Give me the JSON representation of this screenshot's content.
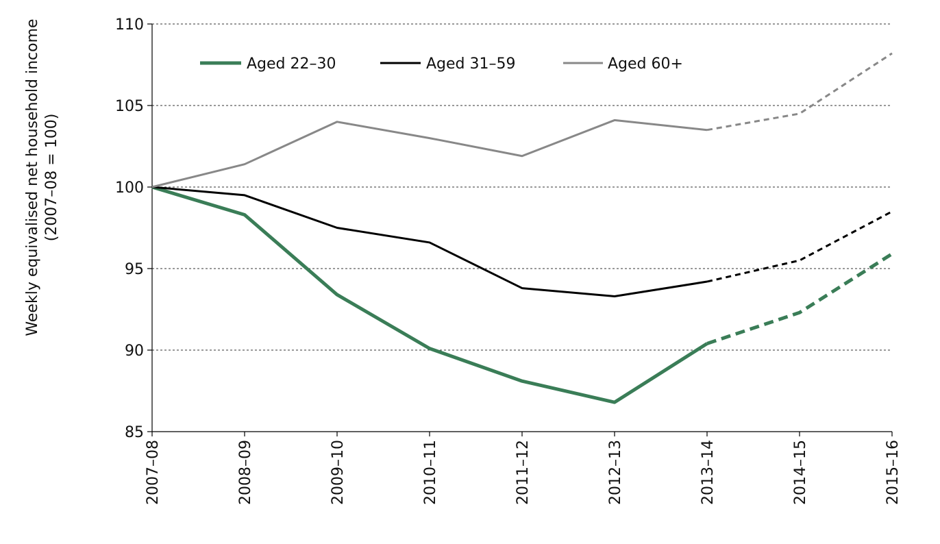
{
  "chart_data": {
    "type": "line",
    "title": "",
    "xlabel": "",
    "ylabel": [
      "Weekly equivalised net household  income",
      "(2007–08 = 100)"
    ],
    "categories": [
      "2007–08",
      "2008–09",
      "2009–10",
      "2010–11",
      "2011–12",
      "2012–13",
      "2013–14",
      "2014–15",
      "2015–16"
    ],
    "ylim": [
      85,
      110
    ],
    "yticks": [
      85,
      90,
      95,
      100,
      105,
      110
    ],
    "grid": "horizontal dashed",
    "legend_position": "top",
    "projection_start_index": 6,
    "series": [
      {
        "name": "Aged 22–30",
        "color": "#3a7d57",
        "width": "thick",
        "values": [
          100,
          98.3,
          93.4,
          90.1,
          88.1,
          86.8,
          90.4,
          92.3,
          95.9
        ]
      },
      {
        "name": "Aged 31–59",
        "color": "#000000",
        "width": "medium",
        "values": [
          100,
          99.5,
          97.5,
          96.6,
          93.8,
          93.3,
          94.2,
          95.5,
          98.5
        ]
      },
      {
        "name": "Aged 60+",
        "color": "#888888",
        "width": "medium",
        "values": [
          100,
          101.4,
          104.0,
          103.0,
          101.9,
          104.1,
          103.5,
          104.5,
          108.2
        ]
      }
    ]
  }
}
